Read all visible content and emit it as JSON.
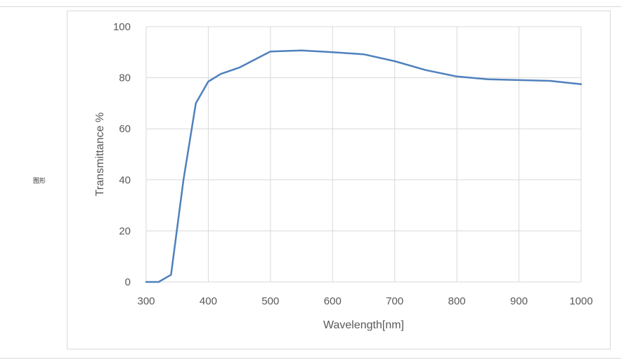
{
  "side_label": "图形",
  "chart_data": {
    "type": "line",
    "title": "",
    "xlabel": "Wavelength[nm]",
    "ylabel": "Transmittance %",
    "xlim": [
      300,
      1000
    ],
    "ylim": [
      0,
      100
    ],
    "x_ticks": [
      300,
      400,
      500,
      600,
      700,
      800,
      900,
      1000
    ],
    "y_ticks": [
      0,
      20,
      40,
      60,
      80,
      100
    ],
    "grid": true,
    "legend": "none",
    "series": [
      {
        "color": "#4f81bd",
        "x": [
          300,
          320,
          340,
          360,
          380,
          400,
          420,
          450,
          500,
          550,
          600,
          650,
          700,
          750,
          800,
          850,
          900,
          950,
          1000
        ],
        "y": [
          0,
          0,
          2.8,
          40,
          70,
          78.5,
          81.5,
          84,
          90.3,
          90.7,
          90,
          89.2,
          86.5,
          83,
          80.5,
          79.4,
          79.1,
          78.8,
          77.5
        ]
      }
    ]
  }
}
